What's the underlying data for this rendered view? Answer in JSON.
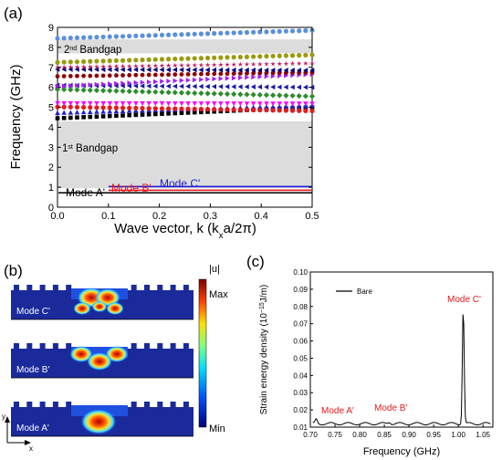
{
  "panel_labels": {
    "a": "(a)",
    "b": "(b)",
    "c": "(c)"
  },
  "chart_data": [
    {
      "id": "a",
      "type": "scatter",
      "xlabel": "Wave vector, k (kxa/2π)",
      "ylabel": "Frequency (GHz)",
      "xlim": [
        0.0,
        0.5
      ],
      "ylim": [
        0,
        9
      ],
      "xticks": [
        "0.0",
        "0.1",
        "0.2",
        "0.3",
        "0.4",
        "0.5"
      ],
      "yticks": [
        "0",
        "1",
        "2",
        "3",
        "4",
        "5",
        "6",
        "7",
        "8",
        "9"
      ],
      "bandgaps": [
        {
          "label": "1st Bandgap",
          "from": 0.95,
          "to": 4.3
        },
        {
          "label": "2nd Bandgap",
          "from": 7.7,
          "to": 8.4
        }
      ],
      "mode_lines": [
        {
          "name": "Mode A'",
          "color": "#000000",
          "y": 0.72
        },
        {
          "name": "Mode B'",
          "color": "#e41a1c",
          "y": 0.85
        },
        {
          "name": "Mode C'",
          "color": "#1f1fd6",
          "y": 1.03
        }
      ],
      "series": [
        {
          "marker": "square",
          "color": "#000000",
          "y0": 4.45,
          "y1": 5.0
        },
        {
          "marker": "triangle-up",
          "color": "#1f1fd6",
          "y0": 4.72,
          "y1": 5.08
        },
        {
          "marker": "circle",
          "color": "#e41a1c",
          "y0": 5.02,
          "y1": 4.82
        },
        {
          "marker": "triangle-down",
          "color": "#ff00ff",
          "y0": 5.2,
          "y1": 5.18
        },
        {
          "marker": "diamond",
          "color": "#2e8b2e",
          "y0": 5.9,
          "y1": 5.55
        },
        {
          "marker": "triangle-left",
          "color": "#1a1aa0",
          "y0": 6.1,
          "y1": 6.0
        },
        {
          "marker": "triangle-right",
          "color": "#a020f0",
          "y0": 6.05,
          "y1": 6.65
        },
        {
          "marker": "hexagon",
          "color": "#8b0000",
          "y0": 6.55,
          "y1": 6.75
        },
        {
          "marker": "triangle-left",
          "color": "#000080",
          "y0": 6.9,
          "y1": 6.85
        },
        {
          "marker": "star",
          "color": "#c2185b",
          "y0": 7.0,
          "y1": 7.2
        },
        {
          "marker": "circle",
          "color": "#9a9a10",
          "y0": 7.25,
          "y1": 7.62
        },
        {
          "marker": "circle",
          "color": "#5b8fd9",
          "y0": 8.45,
          "y1": 8.85
        }
      ]
    },
    {
      "id": "c",
      "type": "line",
      "xlabel": "Frequency (GHz)",
      "ylabel": "Strain energy density (10−15J/m)",
      "xlim": [
        0.7,
        1.07
      ],
      "ylim": [
        0.01,
        0.1
      ],
      "xticks": [
        "0.70",
        "0.75",
        "0.80",
        "0.85",
        "0.90",
        "0.95",
        "1.00",
        "1.05"
      ],
      "yticks": [
        "0.01",
        "0.02",
        "0.03",
        "0.04",
        "0.05",
        "0.06",
        "0.07",
        "0.08",
        "0.09",
        "0.10"
      ],
      "legend": "Bare",
      "annotations": [
        "Mode A'",
        "Mode B'",
        "Mode C'"
      ],
      "peak": {
        "x": 1.01,
        "y": 0.08
      },
      "baseline": 0.012
    }
  ],
  "panel_b": {
    "colorbar_title": "|u|",
    "colorbar_max": "Max",
    "colorbar_min": "Min",
    "mode_labels": [
      "Mode C'",
      "Mode B'",
      "Mode A'"
    ],
    "axis_y": "y",
    "axis_x": "x"
  },
  "label_parts": {
    "a_xlabel_pre": "Wave vector, k (k",
    "a_xlabel_sub": "x",
    "a_xlabel_post": "a/2π)",
    "a_ylabel": "Frequency (GHz)",
    "bg1_pre": "1",
    "bg1_sup": "st",
    "bg1_post": " Bandgap",
    "bg2_pre": "2",
    "bg2_sup": "nd",
    "bg2_post": " Bandgap",
    "mode_a": "Mode A'",
    "mode_b": "Mode B'",
    "mode_c": "Mode C'",
    "c_ylabel_pre": "Strain energy density (10",
    "c_ylabel_sup": "−15",
    "c_ylabel_post": "J/m)",
    "c_xlabel": "Frequency (GHz)",
    "c_legend": "Bare",
    "c_mode_a": "Mode A'",
    "c_mode_b": "Mode B'",
    "c_mode_c": "Mode C'"
  }
}
